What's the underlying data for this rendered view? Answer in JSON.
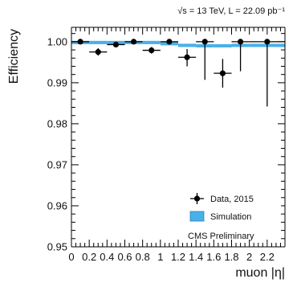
{
  "chart_data": {
    "type": "scatter",
    "header_text": "√s = 13 TeV, L = 22.09 pb⁻¹",
    "annotation": "CMS Preliminary",
    "xlabel": "muon |η|",
    "ylabel": "Efficiency",
    "xlim": [
      0,
      2.4
    ],
    "ylim": [
      0.95,
      1.0035
    ],
    "x_ticks": [
      "0",
      "0.2",
      "0.4",
      "0.6",
      "0.8",
      "1",
      "1.2",
      "1.4",
      "1.6",
      "1.8",
      "2",
      "2.2"
    ],
    "y_ticks": [
      "0.95",
      "0.96",
      "0.97",
      "0.98",
      "0.99",
      "1.00"
    ],
    "legend": {
      "position": "bottom-right",
      "entries": [
        "Data, 2015",
        "Simulation"
      ]
    },
    "colors": {
      "data": "#000000",
      "simulation": "#4ab0e8"
    },
    "series": [
      {
        "name": "Data, 2015",
        "points": [
          {
            "x": 0.1,
            "xerr": 0.1,
            "y": 1.0,
            "yerr_up": 0.0003,
            "yerr_down": 0.0003
          },
          {
            "x": 0.3,
            "xerr": 0.1,
            "y": 0.9975,
            "yerr_up": 0.0009,
            "yerr_down": 0.0009
          },
          {
            "x": 0.5,
            "xerr": 0.1,
            "y": 0.9993,
            "yerr_up": 0.0004,
            "yerr_down": 0.0004
          },
          {
            "x": 0.7,
            "xerr": 0.1,
            "y": 1.0,
            "yerr_up": 0.0003,
            "yerr_down": 0.0003
          },
          {
            "x": 0.9,
            "xerr": 0.1,
            "y": 0.9979,
            "yerr_up": 0.0008,
            "yerr_down": 0.0008
          },
          {
            "x": 1.1,
            "xerr": 0.1,
            "y": 1.0,
            "yerr_up": 0.0003,
            "yerr_down": 0.0003
          },
          {
            "x": 1.3,
            "xerr": 0.1,
            "y": 0.9962,
            "yerr_up": 0.002,
            "yerr_down": 0.0022
          },
          {
            "x": 1.5,
            "xerr": 0.1,
            "y": 1.0,
            "yerr_up": 0.0003,
            "yerr_down": 0.0093
          },
          {
            "x": 1.7,
            "xerr": 0.1,
            "y": 0.9923,
            "yerr_up": 0.0035,
            "yerr_down": 0.0035
          },
          {
            "x": 1.9,
            "xerr": 0.1,
            "y": 1.0,
            "yerr_up": 0.0003,
            "yerr_down": 0.0072
          },
          {
            "x": 2.2,
            "xerr": 0.2,
            "y": 1.0,
            "yerr_up": 0.0003,
            "yerr_down": 0.0158
          }
        ]
      },
      {
        "name": "Simulation",
        "bins": [
          {
            "x_low": 0.0,
            "x_high": 0.2,
            "y": 0.9998,
            "err": 0.0004
          },
          {
            "x_low": 0.2,
            "x_high": 0.4,
            "y": 0.9998,
            "err": 0.0004
          },
          {
            "x_low": 0.4,
            "x_high": 0.6,
            "y": 0.9998,
            "err": 0.0004
          },
          {
            "x_low": 0.6,
            "x_high": 0.8,
            "y": 0.9998,
            "err": 0.0004
          },
          {
            "x_low": 0.8,
            "x_high": 1.0,
            "y": 0.9998,
            "err": 0.0004
          },
          {
            "x_low": 1.0,
            "x_high": 1.2,
            "y": 0.9995,
            "err": 0.0004
          },
          {
            "x_low": 1.2,
            "x_high": 1.4,
            "y": 0.9991,
            "err": 0.0004
          },
          {
            "x_low": 1.4,
            "x_high": 1.6,
            "y": 0.999,
            "err": 0.0004
          },
          {
            "x_low": 1.6,
            "x_high": 1.8,
            "y": 0.999,
            "err": 0.0004
          },
          {
            "x_low": 1.8,
            "x_high": 2.0,
            "y": 0.9991,
            "err": 0.0004
          },
          {
            "x_low": 2.0,
            "x_high": 2.4,
            "y": 0.9991,
            "err": 0.0004
          }
        ]
      }
    ]
  }
}
